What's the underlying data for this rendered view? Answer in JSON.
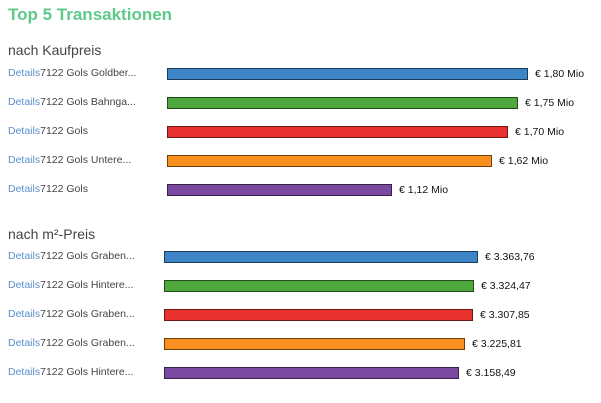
{
  "title": "Top 5 Transaktionen",
  "details_label": "Details",
  "chart_data": [
    {
      "type": "bar",
      "orientation": "horizontal",
      "title": "nach Kaufpreis",
      "categories": [
        "7122 Gols Goldber...",
        "7122 Gols Bahnga...",
        "7122 Gols",
        "7122 Gols Untere...",
        "7122 Gols"
      ],
      "values": [
        1.8,
        1.75,
        1.7,
        1.62,
        1.12
      ],
      "value_labels": [
        "€ 1,80 Mio",
        "€ 1,75 Mio",
        "€ 1,70 Mio",
        "€ 1,62 Mio",
        "€ 1,12 Mio"
      ],
      "colors": [
        "#3d85c6",
        "#4fa83d",
        "#e8322f",
        "#f7901e",
        "#7b4aa0"
      ]
    },
    {
      "type": "bar",
      "orientation": "horizontal",
      "title": "nach m²-Preis",
      "categories": [
        "7122 Gols Graben...",
        "7122 Gols Hintere...",
        "7122 Gols Graben...",
        "7122 Gols Graben...",
        "7122 Gols Hintere..."
      ],
      "values": [
        3363.76,
        3324.47,
        3307.85,
        3225.81,
        3158.49
      ],
      "value_labels": [
        "€ 3.363,76",
        "€ 3.324,47",
        "€ 3.307,85",
        "€ 3.225,81",
        "€ 3.158,49"
      ],
      "colors": [
        "#3d85c6",
        "#4fa83d",
        "#e8322f",
        "#f7901e",
        "#7b4aa0"
      ]
    }
  ]
}
